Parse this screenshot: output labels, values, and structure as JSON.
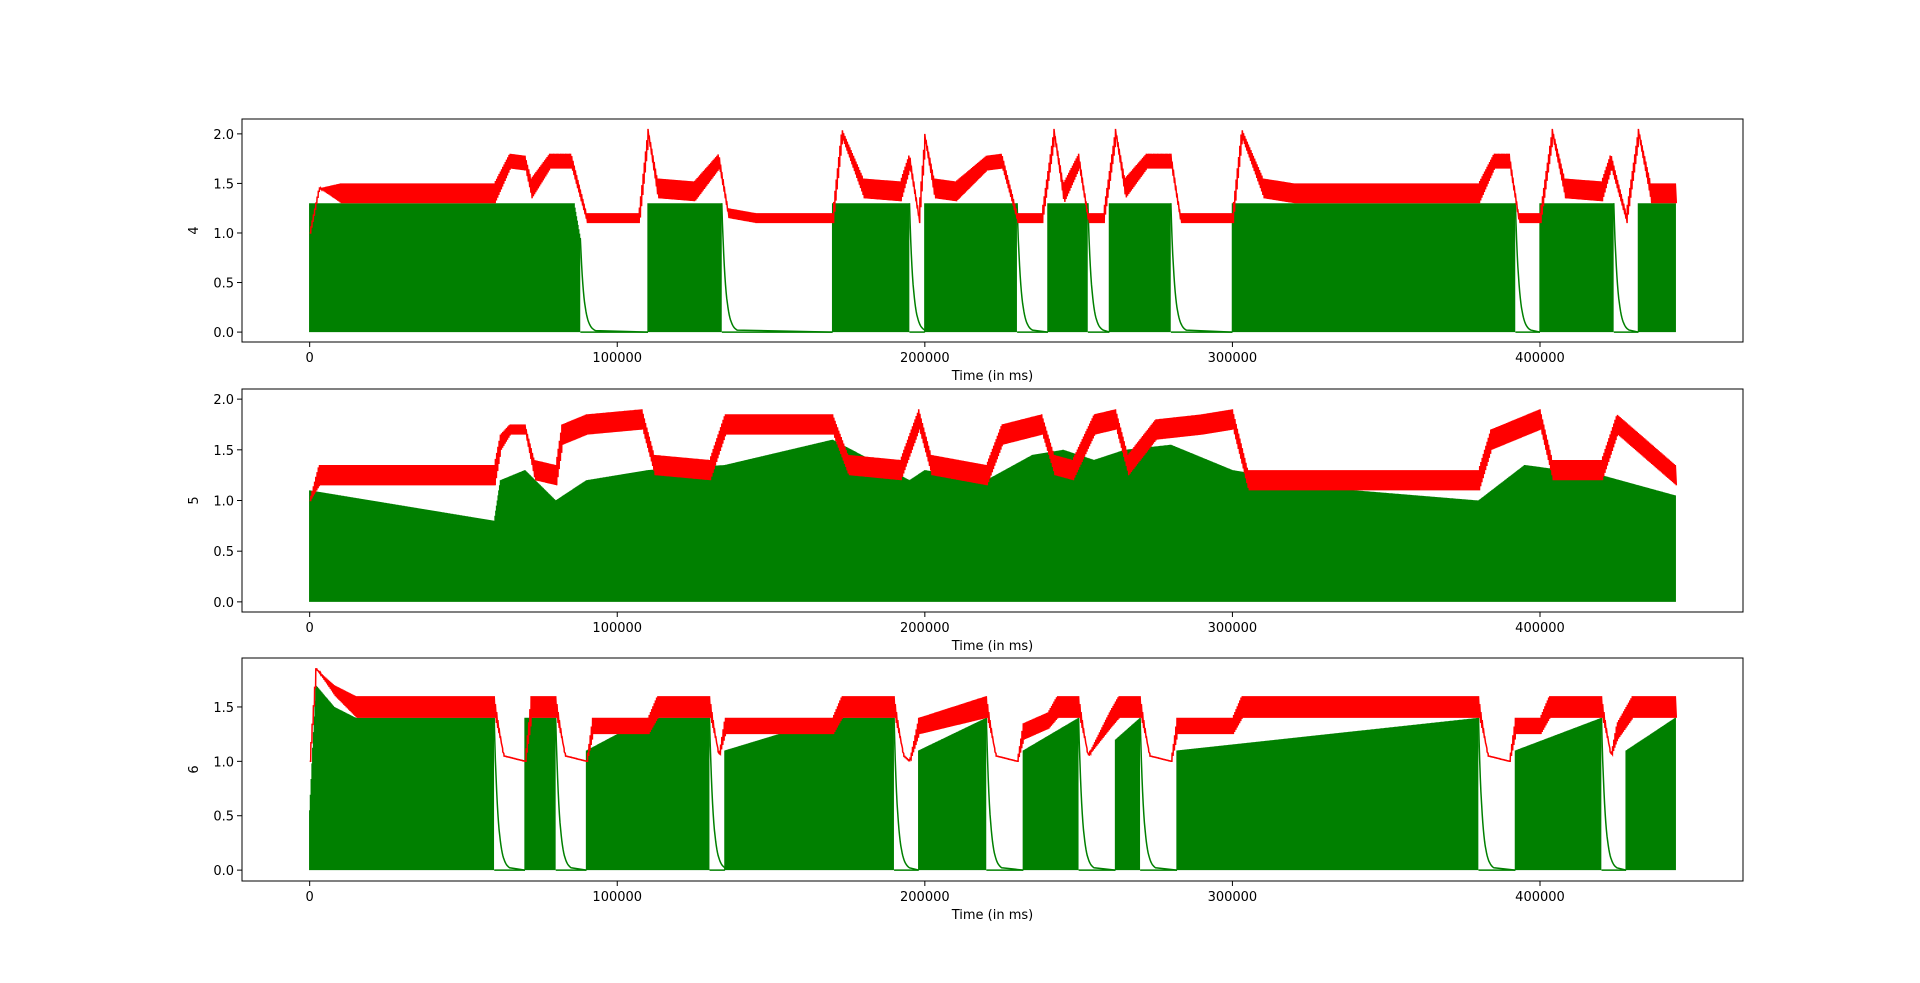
{
  "chart_data": [
    {
      "type": "line",
      "ylabel": "4",
      "xlabel": "Time (in ms)",
      "xlim": [
        -22000,
        466000
      ],
      "ylim": [
        -0.1,
        2.15
      ],
      "xticks": [
        0,
        100000,
        200000,
        300000,
        400000
      ],
      "xtick_labels": [
        "0",
        "100000",
        "200000",
        "300000",
        "400000"
      ],
      "yticks": [
        0.0,
        0.5,
        1.0,
        1.5,
        2.0
      ],
      "ytick_labels": [
        "0.0",
        "0.5",
        "1.0",
        "1.5",
        "2.0"
      ],
      "grid": false,
      "series": [
        {
          "color": "#ff0000",
          "x": [
            0,
            3000,
            10000,
            60000,
            65000,
            70000,
            72000,
            78000,
            85000,
            90000,
            93000,
            100000,
            107000,
            110000,
            113000,
            125000,
            133000,
            136000,
            145000,
            160000,
            170000,
            173000,
            180000,
            192000,
            195000,
            198000,
            200000,
            203000,
            210000,
            220000,
            225000,
            230000,
            233000,
            238000,
            242000,
            245000,
            250000,
            253000,
            258000,
            262000,
            265000,
            272000,
            280000,
            283000,
            290000,
            300000,
            303000,
            310000,
            320000,
            360000,
            380000,
            385000,
            390000,
            393000,
            400000,
            404000,
            408000,
            420000,
            423000,
            428000,
            432000,
            436000,
            444000
          ],
          "y": [
            1.0,
            1.45,
            1.5,
            1.5,
            1.8,
            1.78,
            1.55,
            1.8,
            1.8,
            1.2,
            1.2,
            1.2,
            1.2,
            2.05,
            1.55,
            1.52,
            1.8,
            1.25,
            1.2,
            1.2,
            1.2,
            2.05,
            1.55,
            1.52,
            1.8,
            1.2,
            2.0,
            1.55,
            1.52,
            1.78,
            1.8,
            1.2,
            1.2,
            1.2,
            2.05,
            1.5,
            1.8,
            1.2,
            1.2,
            2.05,
            1.55,
            1.8,
            1.8,
            1.2,
            1.2,
            1.2,
            2.05,
            1.55,
            1.5,
            1.5,
            1.5,
            1.8,
            1.8,
            1.2,
            1.2,
            2.05,
            1.55,
            1.52,
            1.8,
            1.2,
            2.05,
            1.5,
            1.5
          ],
          "band": [
            0,
            0,
            0.2,
            0.2,
            0.15,
            0.15,
            0.2,
            0.15,
            0.15,
            0.1,
            0.1,
            0.1,
            0.1,
            0.1,
            0.2,
            0.2,
            0.15,
            0.1,
            0.1,
            0.1,
            0.1,
            0.1,
            0.2,
            0.2,
            0.15,
            0.1,
            0.1,
            0.2,
            0.2,
            0.15,
            0.15,
            0.1,
            0.1,
            0.1,
            0.1,
            0.2,
            0.15,
            0.1,
            0.1,
            0.1,
            0.2,
            0.15,
            0.15,
            0.1,
            0.1,
            0.1,
            0.1,
            0.2,
            0.2,
            0.2,
            0.2,
            0.15,
            0.15,
            0.1,
            0.1,
            0.1,
            0.2,
            0.2,
            0.15,
            0.1,
            0.1,
            0.2,
            0.2
          ]
        },
        {
          "color": "#008000",
          "x": [
            0,
            86000,
            90000,
            93000,
            110000,
            134000,
            138000,
            170000,
            195000,
            200000,
            230000,
            233000,
            240000,
            253000,
            257000,
            260000,
            280000,
            284000,
            300000,
            392000,
            396000,
            400000,
            424000,
            428000,
            432000,
            444000
          ],
          "y": [
            1.3,
            1.3,
            0.6,
            0.0,
            1.3,
            1.3,
            0.0,
            1.3,
            1.3,
            1.3,
            1.3,
            0.0,
            1.3,
            1.3,
            0.0,
            1.3,
            1.3,
            0.0,
            1.3,
            1.3,
            0.0,
            1.3,
            1.3,
            0.0,
            1.3,
            1.3
          ],
          "band": [
            1.3,
            1.3,
            0.0,
            0.0,
            1.3,
            1.3,
            0.0,
            1.3,
            1.3,
            1.3,
            1.3,
            0.0,
            1.3,
            1.3,
            0.0,
            1.3,
            1.3,
            0.0,
            1.3,
            1.3,
            0.0,
            1.3,
            1.3,
            0.0,
            1.3,
            1.3
          ]
        }
      ]
    },
    {
      "type": "line",
      "ylabel": "5",
      "xlabel": "Time (in ms)",
      "xlim": [
        -22000,
        466000
      ],
      "ylim": [
        -0.1,
        2.1
      ],
      "xticks": [
        0,
        100000,
        200000,
        300000,
        400000
      ],
      "xtick_labels": [
        "0",
        "100000",
        "200000",
        "300000",
        "400000"
      ],
      "yticks": [
        0.0,
        0.5,
        1.0,
        1.5,
        2.0
      ],
      "ytick_labels": [
        "0.0",
        "0.5",
        "1.0",
        "1.5",
        "2.0"
      ],
      "grid": false,
      "series": [
        {
          "color": "#ff0000",
          "x": [
            0,
            3000,
            60000,
            62000,
            65000,
            70000,
            73000,
            80000,
            82000,
            90000,
            108000,
            112000,
            130000,
            135000,
            150000,
            170000,
            175000,
            192000,
            198000,
            202000,
            220000,
            225000,
            238000,
            242000,
            248000,
            255000,
            262000,
            266000,
            275000,
            290000,
            300000,
            305000,
            340000,
            380000,
            384000,
            400000,
            404000,
            420000,
            425000,
            444000
          ],
          "y": [
            1.0,
            1.35,
            1.35,
            1.65,
            1.75,
            1.75,
            1.4,
            1.35,
            1.75,
            1.85,
            1.9,
            1.45,
            1.4,
            1.85,
            1.85,
            1.85,
            1.45,
            1.4,
            1.9,
            1.45,
            1.35,
            1.75,
            1.85,
            1.45,
            1.4,
            1.85,
            1.9,
            1.45,
            1.8,
            1.85,
            1.9,
            1.3,
            1.3,
            1.3,
            1.7,
            1.9,
            1.4,
            1.4,
            1.85,
            1.35
          ],
          "band": [
            0,
            0.2,
            0.2,
            0.15,
            0.1,
            0.1,
            0.2,
            0.2,
            0.2,
            0.2,
            0.2,
            0.2,
            0.2,
            0.2,
            0.2,
            0.2,
            0.2,
            0.2,
            0.2,
            0.2,
            0.2,
            0.2,
            0.2,
            0.2,
            0.2,
            0.2,
            0.2,
            0.2,
            0.2,
            0.2,
            0.2,
            0.2,
            0.2,
            0.2,
            0.2,
            0.2,
            0.2,
            0.2,
            0.2,
            0.2
          ]
        },
        {
          "color": "#008000",
          "x": [
            0,
            60000,
            62000,
            70000,
            80000,
            90000,
            110000,
            135000,
            170000,
            195000,
            200000,
            220000,
            235000,
            245000,
            255000,
            265000,
            280000,
            300000,
            340000,
            380000,
            395000,
            420000,
            444000
          ],
          "y": [
            1.1,
            0.8,
            1.2,
            1.3,
            1.0,
            1.2,
            1.3,
            1.35,
            1.6,
            1.2,
            1.3,
            1.2,
            1.45,
            1.5,
            1.4,
            1.5,
            1.55,
            1.3,
            1.1,
            1.0,
            1.35,
            1.25,
            1.05
          ],
          "band": [
            1.1,
            0.8,
            1.2,
            1.3,
            1.0,
            1.2,
            1.3,
            1.35,
            1.6,
            1.2,
            1.3,
            1.2,
            1.45,
            1.5,
            1.4,
            1.5,
            1.55,
            1.3,
            1.1,
            1.0,
            1.35,
            1.25,
            1.05
          ]
        }
      ]
    },
    {
      "type": "line",
      "ylabel": "6",
      "xlabel": "Time (in ms)",
      "xlim": [
        -22000,
        466000
      ],
      "ylim": [
        -0.1,
        1.95
      ],
      "xticks": [
        0,
        100000,
        200000,
        300000,
        400000
      ],
      "xtick_labels": [
        "0",
        "100000",
        "200000",
        "300000",
        "400000"
      ],
      "yticks": [
        0.0,
        0.5,
        1.0,
        1.5
      ],
      "ytick_labels": [
        "0.0",
        "0.5",
        "1.0",
        "1.5"
      ],
      "grid": false,
      "series": [
        {
          "color": "#ff0000",
          "x": [
            0,
            2000,
            8000,
            15000,
            60000,
            63000,
            70000,
            72000,
            80000,
            83000,
            90000,
            92000,
            110000,
            113000,
            130000,
            133000,
            135000,
            170000,
            173000,
            190000,
            193000,
            195000,
            198000,
            220000,
            223000,
            230000,
            232000,
            240000,
            243000,
            250000,
            253000,
            260000,
            263000,
            270000,
            273000,
            280000,
            282000,
            300000,
            303000,
            380000,
            383000,
            390000,
            392000,
            400000,
            403000,
            420000,
            423000,
            425000,
            430000,
            444000
          ],
          "y": [
            1.0,
            1.85,
            1.7,
            1.6,
            1.6,
            1.05,
            1.0,
            1.6,
            1.6,
            1.05,
            1.0,
            1.4,
            1.4,
            1.6,
            1.6,
            1.05,
            1.4,
            1.4,
            1.6,
            1.6,
            1.05,
            1.0,
            1.4,
            1.6,
            1.05,
            1.0,
            1.35,
            1.45,
            1.6,
            1.6,
            1.05,
            1.45,
            1.6,
            1.6,
            1.05,
            1.0,
            1.4,
            1.4,
            1.6,
            1.6,
            1.05,
            1.0,
            1.4,
            1.4,
            1.6,
            1.6,
            1.05,
            1.35,
            1.6,
            1.6
          ],
          "band": [
            0,
            0,
            0.1,
            0.2,
            0.2,
            0,
            0,
            0.2,
            0.2,
            0,
            0,
            0.15,
            0.15,
            0.2,
            0.2,
            0,
            0.15,
            0.15,
            0.2,
            0.2,
            0,
            0,
            0.15,
            0.2,
            0,
            0,
            0.15,
            0.15,
            0.2,
            0.2,
            0,
            0.15,
            0.2,
            0.2,
            0,
            0,
            0.15,
            0.15,
            0.2,
            0.2,
            0,
            0,
            0.15,
            0.15,
            0.2,
            0.2,
            0,
            0.15,
            0.2,
            0.2
          ]
        },
        {
          "color": "#008000",
          "x": [
            0,
            2000,
            8000,
            15000,
            60000,
            70000,
            80000,
            90000,
            110000,
            130000,
            135000,
            170000,
            190000,
            198000,
            220000,
            232000,
            250000,
            262000,
            270000,
            282000,
            380000,
            392000,
            420000,
            428000,
            444000
          ],
          "y": [
            0.55,
            1.7,
            1.5,
            1.4,
            1.4,
            1.4,
            1.4,
            1.1,
            1.4,
            1.4,
            1.1,
            1.4,
            1.4,
            1.1,
            1.4,
            1.1,
            1.4,
            1.2,
            1.4,
            1.1,
            1.4,
            1.1,
            1.4,
            1.1,
            1.4
          ],
          "band": [
            0.55,
            1.7,
            1.5,
            1.4,
            1.4,
            1.4,
            1.4,
            1.1,
            1.4,
            1.4,
            1.1,
            1.4,
            1.4,
            1.1,
            1.4,
            1.1,
            1.4,
            1.2,
            1.4,
            1.1,
            1.4,
            1.1,
            1.4,
            1.1,
            1.4
          ]
        }
      ],
      "green_gaps": [
        [
          60000,
          70000
        ],
        [
          80000,
          90000
        ],
        [
          130000,
          135000
        ],
        [
          190000,
          198000
        ],
        [
          220000,
          232000
        ],
        [
          250000,
          262000
        ],
        [
          270000,
          282000
        ],
        [
          380000,
          392000
        ],
        [
          420000,
          428000
        ]
      ]
    }
  ],
  "gaps_panel1": [
    [
      88000,
      110000
    ],
    [
      134000,
      170000
    ],
    [
      195000,
      200000
    ],
    [
      230000,
      240000
    ],
    [
      253000,
      260000
    ],
    [
      280000,
      300000
    ],
    [
      392000,
      400000
    ],
    [
      424000,
      432000
    ]
  ]
}
